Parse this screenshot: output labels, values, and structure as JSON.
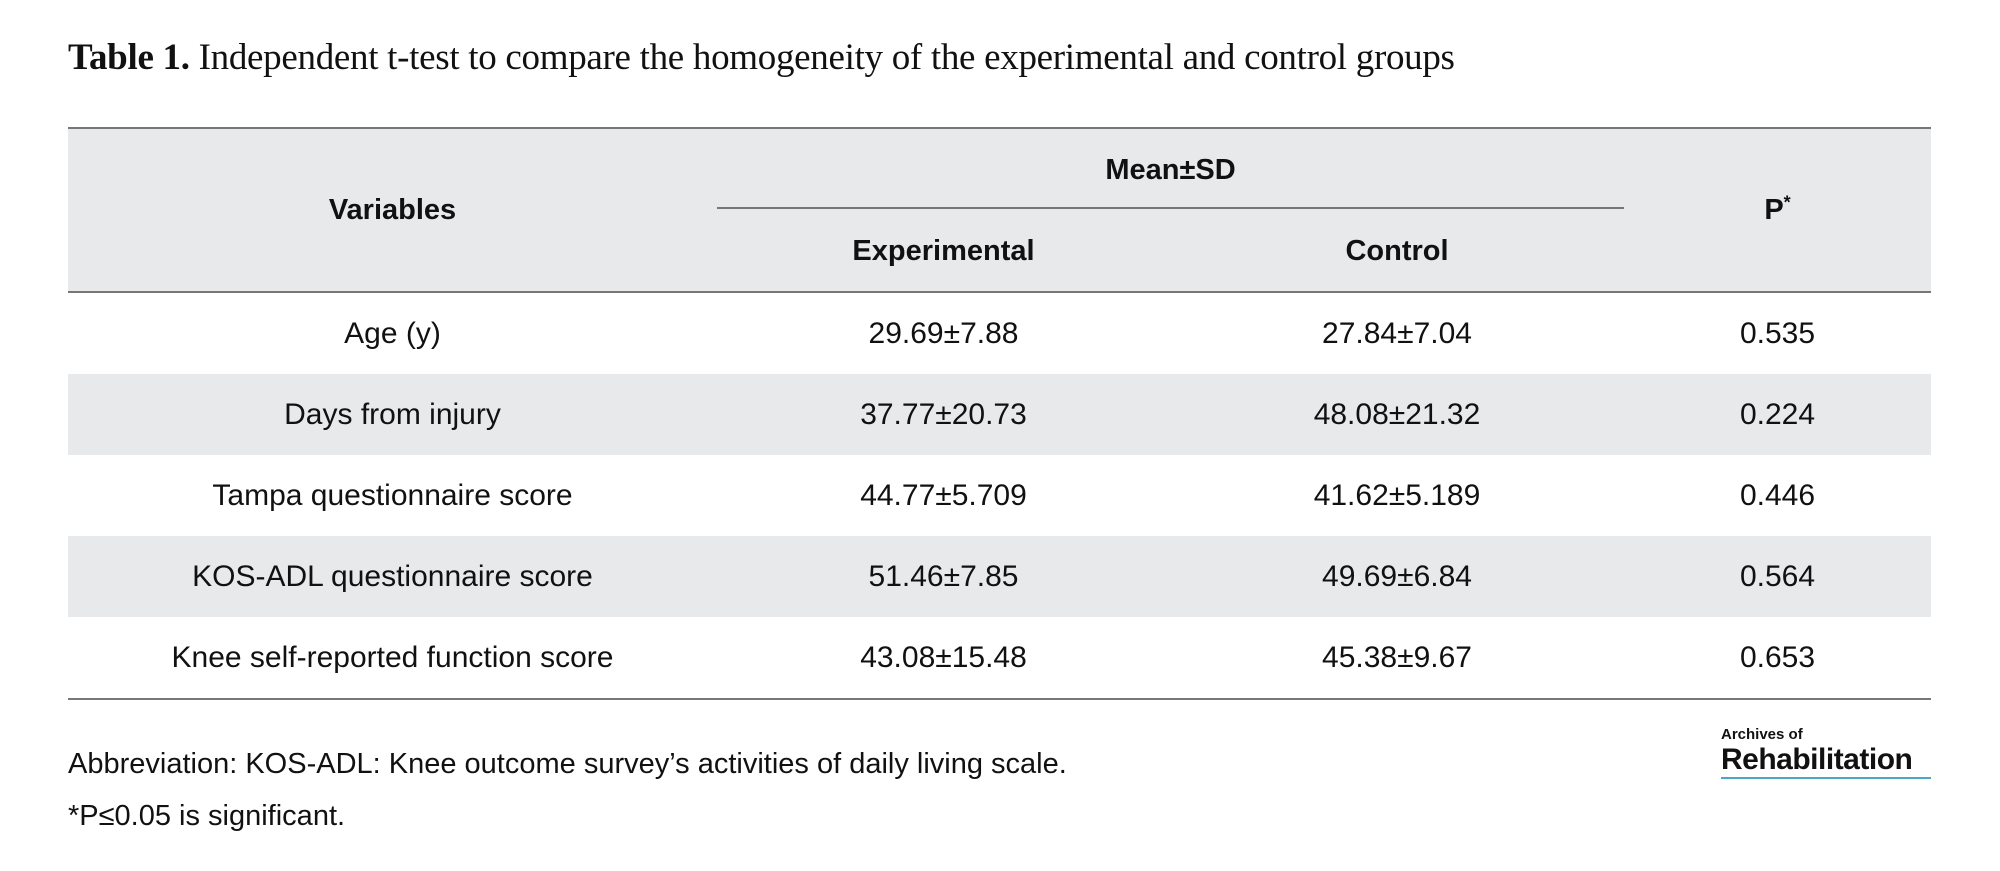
{
  "caption": {
    "label": "Table 1.",
    "text": "Independent t-test to compare the homogeneity of the experimental and control groups"
  },
  "table": {
    "header": {
      "variables": "Variables",
      "group_header": "Mean±SD",
      "experimental": "Experimental",
      "control": "Control",
      "p": "P",
      "p_sup": "*"
    },
    "rows": [
      {
        "variable": "Age (y)",
        "experimental": "29.69±7.88",
        "control": "27.84±7.04",
        "p": "0.535"
      },
      {
        "variable": "Days from injury",
        "experimental": "37.77±20.73",
        "control": "48.08±21.32",
        "p": "0.224"
      },
      {
        "variable": "Tampa questionnaire score",
        "experimental": "44.77±5.709",
        "control": "41.62±5.189",
        "p": "0.446"
      },
      {
        "variable": "KOS-ADL questionnaire score",
        "experimental": "51.46±7.85",
        "control": "49.69±6.84",
        "p": "0.564"
      },
      {
        "variable": "Knee self-reported function score",
        "experimental": "43.08±15.48",
        "control": "45.38±9.67",
        "p": "0.653"
      }
    ]
  },
  "footnotes": {
    "abbreviation": "Abbreviation: KOS-ADL: Knee outcome survey’s activities of daily living scale.",
    "significance": "*P≤0.05 is significant."
  },
  "brand": {
    "line1": "Archives of",
    "line2": "Rehabilitation"
  },
  "colors": {
    "header_background": "#e8e9eb",
    "stripe_background": "#e8e9eb",
    "rule": "#777777",
    "brand_underline": "#49a7c8"
  }
}
